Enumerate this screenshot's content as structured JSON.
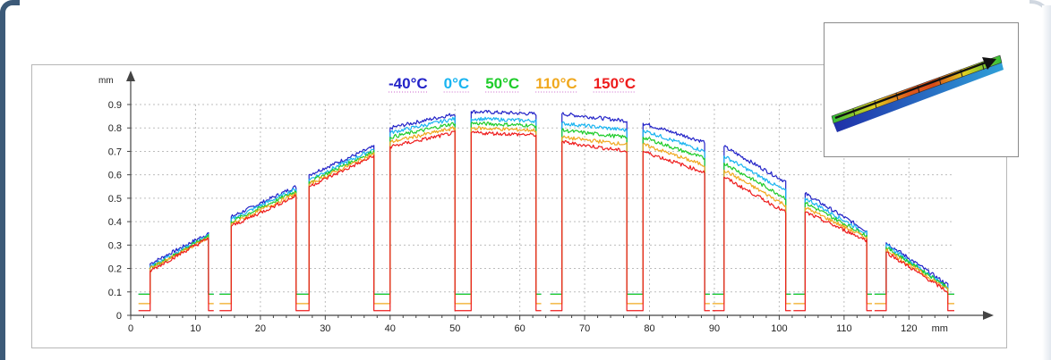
{
  "chart_data": {
    "type": "line",
    "xlabel": "",
    "x_unit": "mm",
    "ylabel": "mm",
    "xlim": [
      0,
      127
    ],
    "ylim": [
      0,
      0.9
    ],
    "x_ticks": [
      0,
      10,
      20,
      30,
      40,
      50,
      60,
      70,
      80,
      90,
      100,
      110,
      120
    ],
    "y_ticks": [
      0,
      0.1,
      0.2,
      0.3,
      0.4,
      0.5,
      0.6,
      0.7,
      0.8,
      0.9
    ],
    "y_tick_labels": [
      "0",
      "0.1",
      "0.2",
      "0.3",
      "0.4",
      "0.5",
      "0.6",
      "0.7",
      "0.8",
      "0.9"
    ],
    "grid": true,
    "legend_position": "top-center",
    "series": [
      {
        "name": "-40°C",
        "color": "#2323c8",
        "baseline": 0.09
      },
      {
        "name": "0°C",
        "color": "#19b4f0",
        "baseline": 0.09
      },
      {
        "name": "50°C",
        "color": "#1ecc2a",
        "baseline": 0.09
      },
      {
        "name": "110°C",
        "color": "#f0a81e",
        "baseline": 0.05
      },
      {
        "name": "150°C",
        "color": "#ee1c1c",
        "baseline": 0.02
      }
    ],
    "segments": [
      {
        "x": [
          3,
          12
        ],
        "y": {
          "-40°C": [
            0.22,
            0.35
          ],
          "0°C": [
            0.21,
            0.34
          ],
          "50°C": [
            0.2,
            0.34
          ],
          "110°C": [
            0.2,
            0.33
          ],
          "150°C": [
            0.19,
            0.33
          ]
        }
      },
      {
        "x": [
          15.5,
          25.5
        ],
        "y": {
          "-40°C": [
            0.42,
            0.55
          ],
          "0°C": [
            0.41,
            0.54
          ],
          "50°C": [
            0.4,
            0.53
          ],
          "110°C": [
            0.39,
            0.52
          ],
          "150°C": [
            0.38,
            0.51
          ]
        }
      },
      {
        "x": [
          27.5,
          37.5
        ],
        "y": {
          "-40°C": [
            0.6,
            0.72
          ],
          "0°C": [
            0.58,
            0.71
          ],
          "50°C": [
            0.57,
            0.7
          ],
          "110°C": [
            0.56,
            0.69
          ],
          "150°C": [
            0.55,
            0.68
          ]
        }
      },
      {
        "x": [
          40,
          50
        ],
        "y": {
          "-40°C": [
            0.8,
            0.86
          ],
          "0°C": [
            0.78,
            0.84
          ],
          "50°C": [
            0.76,
            0.82
          ],
          "110°C": [
            0.74,
            0.8
          ],
          "150°C": [
            0.72,
            0.78
          ]
        }
      },
      {
        "x": [
          52.5,
          62.5
        ],
        "y": {
          "-40°C": [
            0.87,
            0.86
          ],
          "0°C": [
            0.84,
            0.83
          ],
          "50°C": [
            0.82,
            0.81
          ],
          "110°C": [
            0.8,
            0.79
          ],
          "150°C": [
            0.78,
            0.77
          ]
        }
      },
      {
        "x": [
          66.5,
          76.5
        ],
        "y": {
          "-40°C": [
            0.86,
            0.83
          ],
          "0°C": [
            0.82,
            0.79
          ],
          "50°C": [
            0.79,
            0.76
          ],
          "110°C": [
            0.76,
            0.73
          ],
          "150°C": [
            0.74,
            0.7
          ]
        }
      },
      {
        "x": [
          79,
          88.5
        ],
        "y": {
          "-40°C": [
            0.82,
            0.74
          ],
          "0°C": [
            0.79,
            0.7
          ],
          "50°C": [
            0.76,
            0.67
          ],
          "110°C": [
            0.73,
            0.64
          ],
          "150°C": [
            0.7,
            0.61
          ]
        }
      },
      {
        "x": [
          91.5,
          101
        ],
        "y": {
          "-40°C": [
            0.72,
            0.57
          ],
          "0°C": [
            0.68,
            0.53
          ],
          "50°C": [
            0.65,
            0.5
          ],
          "110°C": [
            0.62,
            0.47
          ],
          "150°C": [
            0.59,
            0.44
          ]
        }
      },
      {
        "x": [
          104,
          113.5
        ],
        "y": {
          "-40°C": [
            0.52,
            0.36
          ],
          "0°C": [
            0.5,
            0.35
          ],
          "50°C": [
            0.48,
            0.34
          ],
          "110°C": [
            0.46,
            0.33
          ],
          "150°C": [
            0.44,
            0.32
          ]
        }
      },
      {
        "x": [
          116.5,
          126
        ],
        "y": {
          "-40°C": [
            0.31,
            0.13
          ],
          "0°C": [
            0.3,
            0.12
          ],
          "50°C": [
            0.29,
            0.12
          ],
          "110°C": [
            0.28,
            0.11
          ],
          "150°C": [
            0.27,
            0.1
          ]
        }
      }
    ]
  },
  "inset": {
    "caption": ""
  }
}
